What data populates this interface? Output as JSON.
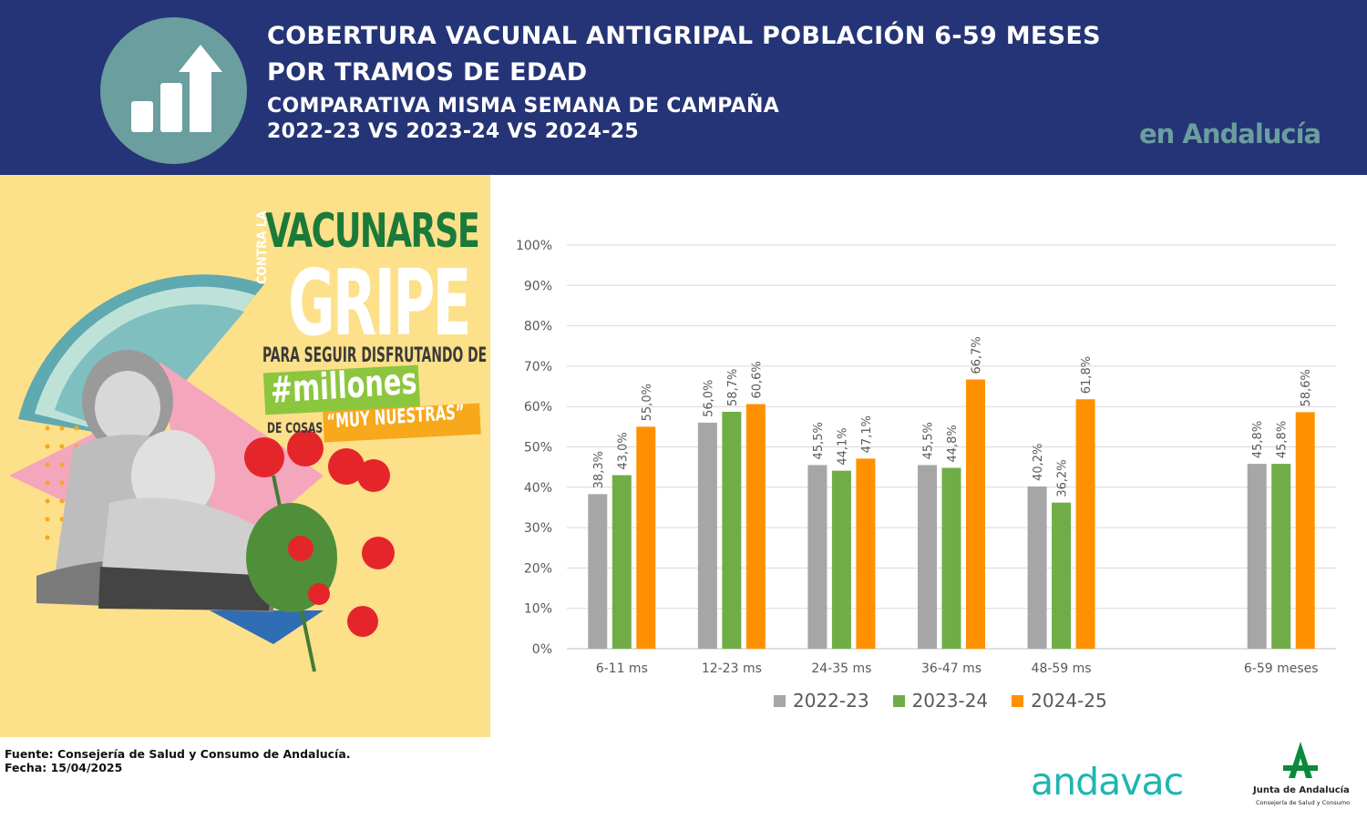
{
  "header": {
    "title_line1": "COBERTURA VACUNAL ANTIGRIPAL POBLACIÓN 6-59 MESES",
    "title_line2": "POR TRAMOS DE EDAD",
    "subtitle_line1": "COMPARATIVA MISMA SEMANA DE CAMPAÑA",
    "subtitle_line2": "2022-23 VS 2023-24 VS 2024-25",
    "region": "en Andalucía",
    "icon": "bar-chart-arrow-icon",
    "background_color": "#253476",
    "accent_color": "#6b9e9e"
  },
  "poster": {
    "line_vacunarse": "VACUNARSE",
    "line_contra": "CONTRA LA",
    "line_gripe": "GRIPE",
    "line_para": "PARA SEGUIR DISFRUTANDO DE",
    "line_millones": "#millones",
    "line_decosas": "DE COSAS",
    "line_muy": "“MUY NUESTRAS”",
    "background_color": "#fde08a"
  },
  "chart_data": {
    "type": "bar",
    "categories": [
      "6-11 ms",
      "12-23 ms",
      "24-35 ms",
      "36-47 ms",
      "48-59 ms",
      "6-59 meses"
    ],
    "series": [
      {
        "name": "2022-23",
        "color": "#a6a6a6",
        "values": [
          38.3,
          56.0,
          45.5,
          45.5,
          40.2,
          45.8
        ],
        "labels": [
          "38,3%",
          "56,0%",
          "45,5%",
          "45,5%",
          "40,2%",
          "45,8%"
        ]
      },
      {
        "name": "2023-24",
        "color": "#70ad47",
        "values": [
          43.0,
          58.7,
          44.1,
          44.8,
          36.2,
          45.8
        ],
        "labels": [
          "43,0%",
          "58,7%",
          "44,1%",
          "44,8%",
          "36,2%",
          "45,8%"
        ]
      },
      {
        "name": "2024-25",
        "color": "#ff9100",
        "values": [
          55.0,
          60.6,
          47.1,
          66.7,
          61.8,
          58.6
        ],
        "labels": [
          "55,0%",
          "60,6%",
          "47,1%",
          "66,7%",
          "61,8%",
          "58,6%"
        ]
      }
    ],
    "yticks": [
      "0%",
      "10%",
      "20%",
      "30%",
      "40%",
      "50%",
      "60%",
      "70%",
      "80%",
      "90%",
      "100%"
    ],
    "ylim": [
      0,
      100
    ],
    "grid": true,
    "legend_position": "bottom"
  },
  "footer": {
    "source": "Fuente: Consejería de Salud y Consumo de Andalucía.",
    "date": "Fecha: 15/04/2025",
    "andavac": "andavac",
    "junta_name": "Junta de Andalucía",
    "junta_sub": "Consejería de Salud y Consumo"
  }
}
